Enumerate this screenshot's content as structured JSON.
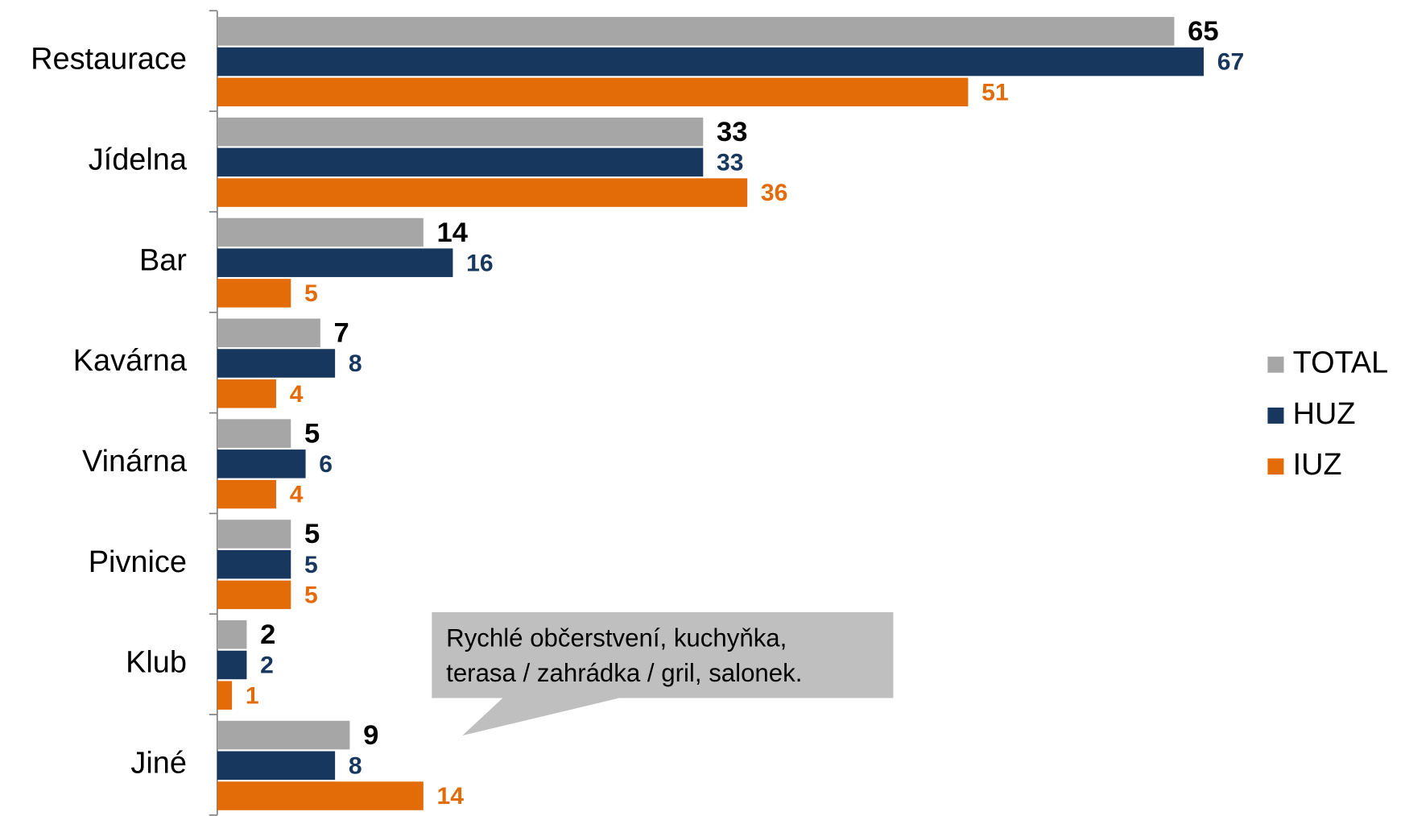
{
  "chart_data": {
    "type": "bar",
    "orientation": "horizontal",
    "categories": [
      "Restaurace",
      "Jídelna",
      "Bar",
      "Kavárna",
      "Vinárna",
      "Pivnice",
      "Klub",
      "Jiné"
    ],
    "series": [
      {
        "name": "TOTAL",
        "color": "#a6a6a6",
        "values": [
          65,
          33,
          14,
          7,
          5,
          5,
          2,
          9
        ]
      },
      {
        "name": "HUZ",
        "color": "#17375e",
        "values": [
          67,
          33,
          16,
          8,
          6,
          5,
          2,
          8
        ]
      },
      {
        "name": "IUZ",
        "color": "#e36c09",
        "values": [
          51,
          36,
          5,
          4,
          4,
          5,
          1,
          14
        ]
      }
    ],
    "legend": "right",
    "annotation": [
      "Rychlé občerstvení, kuchyňka,",
      "terasa / zahrádka / gril, salonek."
    ]
  }
}
